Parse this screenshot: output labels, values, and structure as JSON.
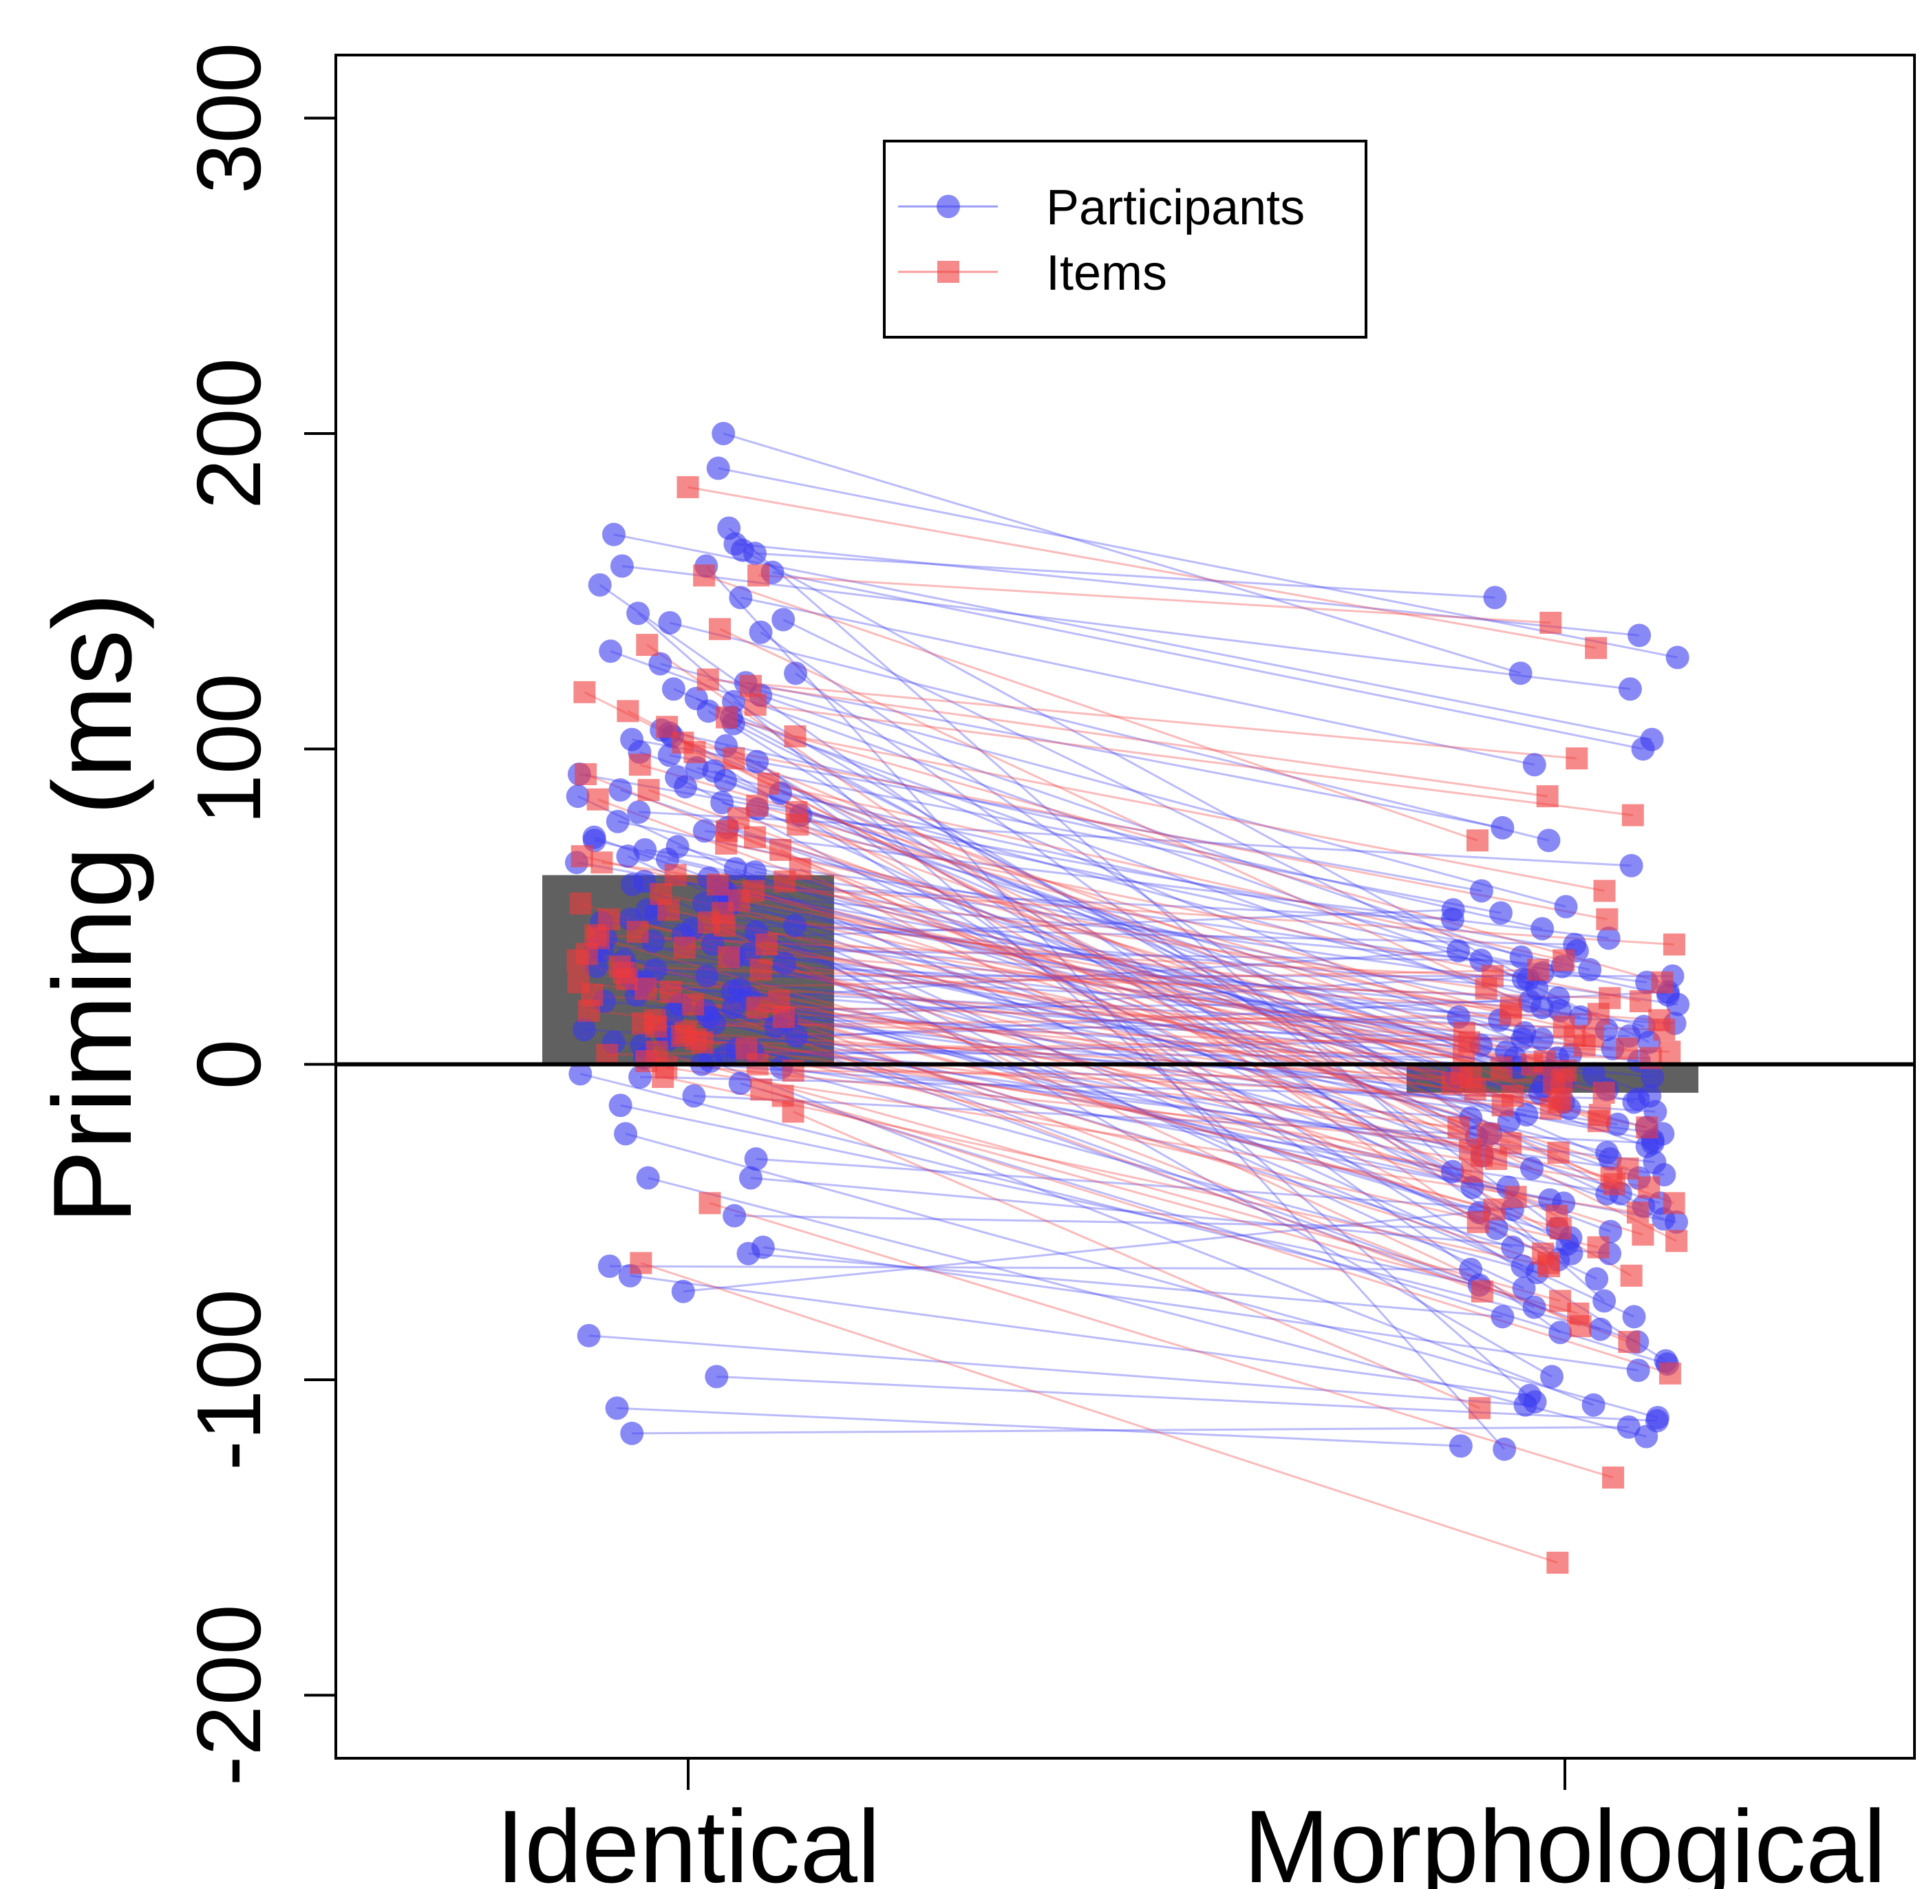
{
  "chart_data": {
    "type": "scatter",
    "title": "",
    "ylabel": "Priming (ms)",
    "xlabel": "",
    "categories": [
      "Identical",
      "Morphological"
    ],
    "ylim": [
      -220,
      320
    ],
    "yticks": [
      -200,
      -100,
      0,
      100,
      200,
      300
    ],
    "reference_line": 0,
    "legend": {
      "position": "top-center",
      "entries": [
        "Participants",
        "Items"
      ]
    },
    "colors": {
      "participants": "#3b3bf0",
      "items": "#f03b3b",
      "bars": "#606060"
    },
    "bars": [
      {
        "category": "Identical",
        "value": 60
      },
      {
        "category": "Morphological",
        "value": -9
      }
    ],
    "series": [
      {
        "name": "Participants",
        "marker": "circle",
        "points": [
          [
            200,
            124
          ],
          [
            189,
            129
          ],
          [
            170,
            -75
          ],
          [
            168,
            103
          ],
          [
            165,
            136
          ],
          [
            163,
            27
          ],
          [
            162,
            148
          ],
          [
            158,
            -122
          ],
          [
            158,
            119
          ],
          [
            156,
            100
          ],
          [
            152,
            -62
          ],
          [
            148,
            95
          ],
          [
            143,
            -107
          ],
          [
            141,
            7
          ],
          [
            140,
            71
          ],
          [
            137,
            -22
          ],
          [
            131,
            27
          ],
          [
            127,
            50
          ],
          [
            124,
            -52
          ],
          [
            121,
            75
          ],
          [
            119,
            -10
          ],
          [
            117,
            34
          ],
          [
            116,
            -45
          ],
          [
            115,
            -23
          ],
          [
            112,
            -39
          ],
          [
            110,
            18
          ],
          [
            108,
            -18
          ],
          [
            106,
            43
          ],
          [
            105,
            -94
          ],
          [
            104,
            -4
          ],
          [
            103,
            55
          ],
          [
            101,
            -34
          ],
          [
            99,
            2
          ],
          [
            98,
            48
          ],
          [
            96,
            -85
          ],
          [
            94,
            12
          ],
          [
            93,
            -30
          ],
          [
            92,
            36
          ],
          [
            91,
            -57
          ],
          [
            90,
            -1
          ],
          [
            88,
            22
          ],
          [
            87,
            -14
          ],
          [
            86,
            30
          ],
          [
            85,
            -68
          ],
          [
            83,
            8
          ],
          [
            81,
            -41
          ],
          [
            80,
            63
          ],
          [
            79,
            -6
          ],
          [
            77,
            15
          ],
          [
            75,
            -26
          ],
          [
            74,
            40
          ],
          [
            72,
            -49
          ],
          [
            71,
            4
          ],
          [
            69,
            -12
          ],
          [
            68,
            26
          ],
          [
            66,
            -80
          ],
          [
            65,
            -2
          ],
          [
            64,
            10
          ],
          [
            62,
            -36
          ],
          [
            61,
            19
          ],
          [
            59,
            -20
          ],
          [
            58,
            46
          ],
          [
            57,
            -60
          ],
          [
            56,
            -8
          ],
          [
            54,
            31
          ],
          [
            53,
            -44
          ],
          [
            52,
            6
          ],
          [
            51,
            14
          ],
          [
            50,
            -99
          ],
          [
            49,
            -28
          ],
          [
            48,
            24
          ],
          [
            46,
            -16
          ],
          [
            45,
            38
          ],
          [
            44,
            -53
          ],
          [
            43,
            1
          ],
          [
            42,
            -71
          ],
          [
            41,
            17
          ],
          [
            40,
            -24
          ],
          [
            39,
            49
          ],
          [
            38,
            -9
          ],
          [
            37,
            33
          ],
          [
            36,
            -47
          ],
          [
            35,
            5
          ],
          [
            34,
            -33
          ],
          [
            33,
            21
          ],
          [
            32,
            -64
          ],
          [
            31,
            -4
          ],
          [
            30,
            13
          ],
          [
            29,
            -39
          ],
          [
            28,
            28
          ],
          [
            27,
            -19
          ],
          [
            26,
            -88
          ],
          [
            25,
            3
          ],
          [
            24,
            -55
          ],
          [
            23,
            11
          ],
          [
            22,
            -29
          ],
          [
            21,
            36
          ],
          [
            20,
            -12
          ],
          [
            19,
            -77
          ],
          [
            18,
            -3
          ],
          [
            17,
            20
          ],
          [
            16,
            -43
          ],
          [
            15,
            8
          ],
          [
            14,
            -22
          ],
          [
            13,
            29
          ],
          [
            12,
            -58
          ],
          [
            11,
            -7
          ],
          [
            10,
            -35
          ],
          [
            9,
            15
          ],
          [
            8,
            -66
          ],
          [
            7,
            -15
          ],
          [
            6,
            23
          ],
          [
            5,
            -50
          ],
          [
            4,
            2
          ],
          [
            3,
            -31
          ],
          [
            2,
            9
          ],
          [
            1,
            -108
          ],
          [
            0,
            -17
          ],
          [
            -1,
            -41
          ],
          [
            -3,
            -84
          ],
          [
            -4,
            -11
          ],
          [
            -6,
            -95
          ],
          [
            -10,
            -25
          ],
          [
            -13,
            -70
          ],
          [
            -22,
            -112
          ],
          [
            -30,
            -46
          ],
          [
            -36,
            -118
          ],
          [
            -36,
            -60
          ],
          [
            -48,
            -52
          ],
          [
            -58,
            -97
          ],
          [
            -60,
            -80
          ],
          [
            -64,
            -65
          ],
          [
            -67,
            -105
          ],
          [
            -72,
            -44
          ],
          [
            -86,
            -108
          ],
          [
            -99,
            -113
          ],
          [
            -109,
            -121
          ],
          [
            -117,
            -115
          ]
        ]
      },
      {
        "name": "Items",
        "marker": "square",
        "points": [
          [
            183,
            132
          ],
          [
            155,
            71
          ],
          [
            155,
            140
          ],
          [
            138,
            9
          ],
          [
            133,
            -50
          ],
          [
            122,
            97
          ],
          [
            120,
            85
          ],
          [
            118,
            -56
          ],
          [
            114,
            79
          ],
          [
            112,
            -30
          ],
          [
            110,
            26
          ],
          [
            107,
            -12
          ],
          [
            104,
            55
          ],
          [
            102,
            46
          ],
          [
            99,
            -2
          ],
          [
            97,
            -38
          ],
          [
            95,
            16
          ],
          [
            92,
            -22
          ],
          [
            89,
            33
          ],
          [
            87,
            -6
          ],
          [
            84,
            -44
          ],
          [
            82,
            6
          ],
          [
            80,
            -67
          ],
          [
            78,
            20
          ],
          [
            76,
            -18
          ],
          [
            74,
            -29
          ],
          [
            72,
            0
          ],
          [
            70,
            12
          ],
          [
            68,
            -48
          ],
          [
            66,
            -9
          ],
          [
            64,
            24
          ],
          [
            62,
            -60
          ],
          [
            60,
            3
          ],
          [
            58,
            -14
          ],
          [
            57,
            38
          ],
          [
            55,
            -33
          ],
          [
            54,
            -1
          ],
          [
            52,
            10
          ],
          [
            51,
            -54
          ],
          [
            49,
            -20
          ],
          [
            48,
            18
          ],
          [
            46,
            -4
          ],
          [
            45,
            -83
          ],
          [
            44,
            7
          ],
          [
            42,
            -25
          ],
          [
            41,
            28
          ],
          [
            40,
            -42
          ],
          [
            38,
            -8
          ],
          [
            37,
            14
          ],
          [
            35,
            -36
          ],
          [
            34,
            1
          ],
          [
            33,
            -72
          ],
          [
            31,
            21
          ],
          [
            30,
            -16
          ],
          [
            29,
            -52
          ],
          [
            27,
            5
          ],
          [
            26,
            -10
          ],
          [
            24,
            30
          ],
          [
            23,
            -63
          ],
          [
            22,
            -3
          ],
          [
            20,
            -27
          ],
          [
            19,
            11
          ],
          [
            18,
            -46
          ],
          [
            17,
            -13
          ],
          [
            15,
            -88
          ],
          [
            14,
            4
          ],
          [
            13,
            -34
          ],
          [
            12,
            16
          ],
          [
            10,
            -6
          ],
          [
            9,
            -58
          ],
          [
            8,
            -20
          ],
          [
            7,
            2
          ],
          [
            5,
            -39
          ],
          [
            4,
            -75
          ],
          [
            3,
            9
          ],
          [
            1,
            -28
          ],
          [
            0,
            -11
          ],
          [
            -1,
            -47
          ],
          [
            -2,
            -5
          ],
          [
            -4,
            -64
          ],
          [
            -8,
            -79
          ],
          [
            -10,
            -98
          ],
          [
            -15,
            -109
          ],
          [
            -44,
            -131
          ],
          [
            -63,
            -158
          ]
        ]
      }
    ]
  }
}
